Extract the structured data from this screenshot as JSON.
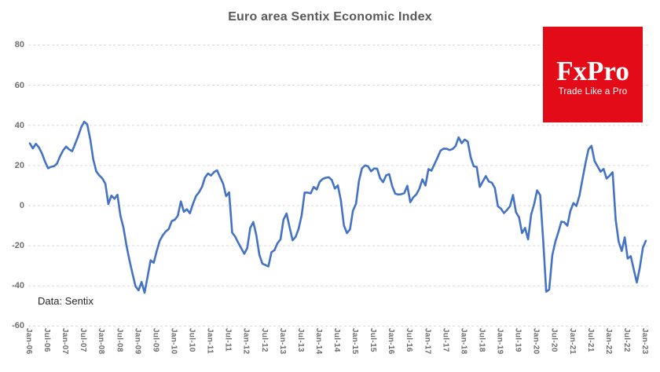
{
  "chart": {
    "title": "Euro area Sentix Economic Index",
    "source": "Data: Sentix"
  },
  "logo": {
    "name": "FxPro",
    "tagline": "Trade Like a Pro",
    "bg_color": "#e30b17",
    "text_color": "#ffffff"
  },
  "chart_data": {
    "type": "line",
    "title": "Euro area Sentix Economic Index",
    "xlabel": "",
    "ylabel": "",
    "frequency": "monthly",
    "x_start": "Jan-2006",
    "x_end": "Jan-2023",
    "legend": "none",
    "grid": "horizontal-dashed",
    "ylim": [
      -60,
      80
    ],
    "y_ticks": [
      80,
      60,
      40,
      20,
      0,
      -20,
      -40,
      -60
    ],
    "x_tick_labels": [
      "Jan-06",
      "Jul-06",
      "Jan-07",
      "Jul-07",
      "Jan-08",
      "Jul-08",
      "Jan-09",
      "Jul-09",
      "Jan-10",
      "Jul-10",
      "Jan-11",
      "Jul-11",
      "Jan-12",
      "Jul-12",
      "Jan-13",
      "Jul-13",
      "Jan-14",
      "Jul-14",
      "Jan-15",
      "Jul-15",
      "Jan-16",
      "Jul-16",
      "Jan-17",
      "Jul-17",
      "Jan-18",
      "Jul-18",
      "Jan-19",
      "Jul-19",
      "Jan-20",
      "Jul-20",
      "Jan-21",
      "Jul-21",
      "Jan-22",
      "Jul-22",
      "Jan-23"
    ],
    "x_tick_interval_months": 6,
    "line_color": "#4472C4",
    "gridline_color": "#d9d9d9",
    "values": [
      31.0,
      28.5,
      30.8,
      29.0,
      26.0,
      22.0,
      18.6,
      19.3,
      19.6,
      21.0,
      24.5,
      27.5,
      29.4,
      28.0,
      27.1,
      30.7,
      34.6,
      39.0,
      41.8,
      40.5,
      33.0,
      23.0,
      17.1,
      15.0,
      13.6,
      10.9,
      0.8,
      5.0,
      3.4,
      5.4,
      -5.1,
      -10.9,
      -20.0,
      -27.2,
      -34.0,
      -40.2,
      -42.2,
      -38.0,
      -43.4,
      -35.3,
      -27.2,
      -28.5,
      -22.7,
      -17.5,
      -14.8,
      -12.9,
      -11.6,
      -7.7,
      -7.0,
      -5.1,
      2.1,
      -3.1,
      -1.8,
      -3.8,
      0.8,
      4.7,
      6.6,
      9.3,
      14.0,
      16.0,
      15.0,
      16.7,
      17.6,
      14.2,
      10.9,
      4.7,
      6.6,
      -13.5,
      -15.4,
      -18.5,
      -21.2,
      -24.0,
      -21.1,
      -11.1,
      -8.2,
      -14.7,
      -24.5,
      -28.9,
      -29.6,
      -30.3,
      -23.2,
      -22.2,
      -18.8,
      -16.8,
      -7.0,
      -3.9,
      -10.6,
      -17.3,
      -15.6,
      -11.6,
      -4.9,
      6.5,
      6.5,
      6.1,
      9.3,
      8.0,
      11.9,
      13.3,
      13.9,
      14.1,
      12.8,
      8.5,
      10.1,
      2.7,
      -9.8,
      -13.7,
      -11.9,
      -2.5,
      0.9,
      12.4,
      18.6,
      20.0,
      19.6,
      17.1,
      18.5,
      18.4,
      13.6,
      11.7,
      15.1,
      15.7,
      9.6,
      6.0,
      5.5,
      5.7,
      6.2,
      9.9,
      1.7,
      4.2,
      5.6,
      8.5,
      13.1,
      10.0,
      18.2,
      17.4,
      20.7,
      23.9,
      27.4,
      28.4,
      28.3,
      27.7,
      28.2,
      29.7,
      34.0,
      31.1,
      32.9,
      31.9,
      24.0,
      19.6,
      19.2,
      9.3,
      12.1,
      14.7,
      12.0,
      11.4,
      8.8,
      -0.3,
      -1.5,
      -3.7,
      -2.2,
      -0.3,
      5.3,
      -3.3,
      -5.8,
      -13.7,
      -11.1,
      -16.8,
      -4.5,
      0.7,
      7.6,
      5.2,
      -17.1,
      -42.9,
      -41.8,
      -24.8,
      -18.2,
      -13.4,
      -8.0,
      -8.3,
      -10.0,
      -2.7,
      1.3,
      -0.2,
      5.0,
      13.1,
      21.0,
      28.1,
      29.8,
      22.2,
      19.6,
      16.9,
      18.3,
      13.5,
      14.9,
      16.6,
      -7.0,
      -18.0,
      -22.6,
      -15.8,
      -26.4,
      -25.2,
      -31.8,
      -38.3,
      -30.9,
      -21.0,
      -17.5
    ]
  }
}
